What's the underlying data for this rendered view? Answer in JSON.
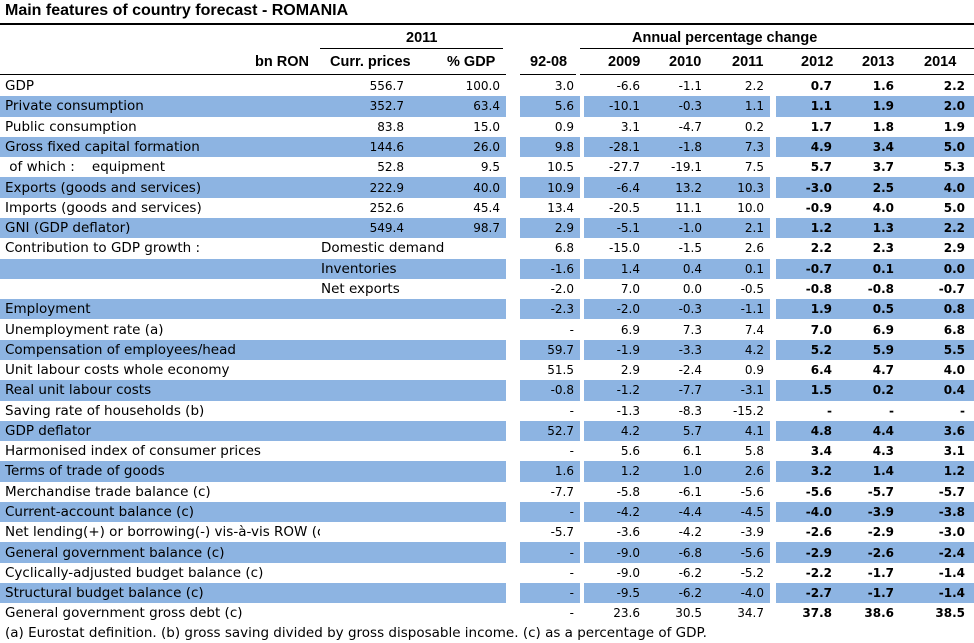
{
  "title": "Main features of country forecast - ROMANIA",
  "header": {
    "year_label": "2011",
    "annual_change_label": "Annual percentage change",
    "col_bn_ron": "bn RON",
    "col_curr_prices": "Curr. prices",
    "col_pct_gdp": "% GDP",
    "col_period": "92-08",
    "col_years": [
      "2009",
      "2010",
      "2011",
      "2012",
      "2013",
      "2014"
    ]
  },
  "rows": [
    {
      "label": "GDP",
      "sub": "",
      "hl": false,
      "curr": "556.7",
      "pct": "100.0",
      "avg": "3.0",
      "vals": [
        "-6.6",
        "-1.1",
        "2.2",
        "0.7",
        "1.6",
        "2.2"
      ]
    },
    {
      "label": "Private consumption",
      "sub": "",
      "hl": true,
      "curr": "352.7",
      "pct": "63.4",
      "avg": "5.6",
      "vals": [
        "-10.1",
        "-0.3",
        "1.1",
        "1.1",
        "1.9",
        "2.0"
      ]
    },
    {
      "label": "Public consumption",
      "sub": "",
      "hl": false,
      "curr": "83.8",
      "pct": "15.0",
      "avg": "0.9",
      "vals": [
        "3.1",
        "-4.7",
        "0.2",
        "1.7",
        "1.8",
        "1.9"
      ]
    },
    {
      "label": "Gross fixed capital formation",
      "sub": "",
      "hl": true,
      "curr": "144.6",
      "pct": "26.0",
      "avg": "9.8",
      "vals": [
        "-28.1",
        "-1.8",
        "7.3",
        "4.9",
        "3.4",
        "5.0"
      ]
    },
    {
      "label": " of which :    equipment",
      "sub": "",
      "hl": false,
      "curr": "52.8",
      "pct": "9.5",
      "avg": "10.5",
      "vals": [
        "-27.7",
        "-19.1",
        "7.5",
        "5.7",
        "3.7",
        "5.3"
      ]
    },
    {
      "label": "Exports (goods and services)",
      "sub": "",
      "hl": true,
      "curr": "222.9",
      "pct": "40.0",
      "avg": "10.9",
      "vals": [
        "-6.4",
        "13.2",
        "10.3",
        "-3.0",
        "2.5",
        "4.0"
      ]
    },
    {
      "label": "Imports (goods and services)",
      "sub": "",
      "hl": false,
      "curr": "252.6",
      "pct": "45.4",
      "avg": "13.4",
      "vals": [
        "-20.5",
        "11.1",
        "10.0",
        "-0.9",
        "4.0",
        "5.0"
      ]
    },
    {
      "label": "GNI (GDP deflator)",
      "sub": "",
      "hl": true,
      "curr": "549.4",
      "pct": "98.7",
      "avg": "2.9",
      "vals": [
        "-5.1",
        "-1.0",
        "2.1",
        "1.2",
        "1.3",
        "2.2"
      ]
    },
    {
      "label": "Contribution to GDP growth :",
      "sub": "Domestic demand",
      "hl": false,
      "curr": "",
      "pct": "",
      "avg": "6.8",
      "vals": [
        "-15.0",
        "-1.5",
        "2.6",
        "2.2",
        "2.3",
        "2.9"
      ]
    },
    {
      "label": "",
      "sub": "Inventories",
      "hl": true,
      "curr": "",
      "pct": "",
      "avg": "-1.6",
      "vals": [
        "1.4",
        "0.4",
        "0.1",
        "-0.7",
        "0.1",
        "0.0"
      ]
    },
    {
      "label": "",
      "sub": "Net exports",
      "hl": false,
      "curr": "",
      "pct": "",
      "avg": "-2.0",
      "vals": [
        "7.0",
        "0.0",
        "-0.5",
        "-0.8",
        "-0.8",
        "-0.7"
      ]
    },
    {
      "label": "Employment",
      "sub": "",
      "hl": true,
      "curr": "",
      "pct": "",
      "avg": "-2.3",
      "vals": [
        "-2.0",
        "-0.3",
        "-1.1",
        "1.9",
        "0.5",
        "0.8"
      ]
    },
    {
      "label": "Unemployment rate (a)",
      "sub": "",
      "hl": false,
      "curr": "",
      "pct": "",
      "avg": "-",
      "vals": [
        "6.9",
        "7.3",
        "7.4",
        "7.0",
        "6.9",
        "6.8"
      ]
    },
    {
      "label": "Compensation of employees/head",
      "sub": "",
      "hl": true,
      "curr": "",
      "pct": "",
      "avg": "59.7",
      "vals": [
        "-1.9",
        "-3.3",
        "4.2",
        "5.2",
        "5.9",
        "5.5"
      ]
    },
    {
      "label": "Unit labour costs whole economy",
      "sub": "",
      "hl": false,
      "curr": "",
      "pct": "",
      "avg": "51.5",
      "vals": [
        "2.9",
        "-2.4",
        "0.9",
        "6.4",
        "4.7",
        "4.0"
      ]
    },
    {
      "label": "Real unit labour costs",
      "sub": "",
      "hl": true,
      "curr": "",
      "pct": "",
      "avg": "-0.8",
      "vals": [
        "-1.2",
        "-7.7",
        "-3.1",
        "1.5",
        "0.2",
        "0.4"
      ]
    },
    {
      "label": "Saving rate of households (b)",
      "sub": "",
      "hl": false,
      "curr": "",
      "pct": "",
      "avg": "-",
      "vals": [
        "-1.3",
        "-8.3",
        "-15.2",
        "-",
        "-",
        "-"
      ]
    },
    {
      "label": "GDP deflator",
      "sub": "",
      "hl": true,
      "curr": "",
      "pct": "",
      "avg": "52.7",
      "vals": [
        "4.2",
        "5.7",
        "4.1",
        "4.8",
        "4.4",
        "3.6"
      ]
    },
    {
      "label": "Harmonised index of consumer prices",
      "sub": "",
      "hl": false,
      "curr": "",
      "pct": "",
      "avg": "-",
      "vals": [
        "5.6",
        "6.1",
        "5.8",
        "3.4",
        "4.3",
        "3.1"
      ]
    },
    {
      "label": "Terms of trade of goods",
      "sub": "",
      "hl": true,
      "curr": "",
      "pct": "",
      "avg": "1.6",
      "vals": [
        "1.2",
        "1.0",
        "2.6",
        "3.2",
        "1.4",
        "1.2"
      ]
    },
    {
      "label": "Merchandise trade balance (c)",
      "sub": "",
      "hl": false,
      "curr": "",
      "pct": "",
      "avg": "-7.7",
      "vals": [
        "-5.8",
        "-6.1",
        "-5.6",
        "-5.6",
        "-5.7",
        "-5.7"
      ]
    },
    {
      "label": "Current-account balance (c)",
      "sub": "",
      "hl": true,
      "curr": "",
      "pct": "",
      "avg": "-",
      "vals": [
        "-4.2",
        "-4.4",
        "-4.5",
        "-4.0",
        "-3.9",
        "-3.8"
      ]
    },
    {
      "label": "Net lending(+) or borrowing(-) vis-à-vis ROW (c)",
      "sub": "",
      "hl": false,
      "curr": "",
      "pct": "",
      "avg": "-5.7",
      "vals": [
        "-3.6",
        "-4.2",
        "-3.9",
        "-2.6",
        "-2.9",
        "-3.0"
      ]
    },
    {
      "label": "General government balance (c)",
      "sub": "",
      "hl": true,
      "curr": "",
      "pct": "",
      "avg": "-",
      "vals": [
        "-9.0",
        "-6.8",
        "-5.6",
        "-2.9",
        "-2.6",
        "-2.4"
      ]
    },
    {
      "label": "Cyclically-adjusted budget balance (c)",
      "sub": "",
      "hl": false,
      "curr": "",
      "pct": "",
      "avg": "-",
      "vals": [
        "-9.0",
        "-6.2",
        "-5.2",
        "-2.2",
        "-1.7",
        "-1.4"
      ]
    },
    {
      "label": "Structural budget balance (c)",
      "sub": "",
      "hl": true,
      "curr": "",
      "pct": "",
      "avg": "-",
      "vals": [
        "-9.5",
        "-6.2",
        "-4.0",
        "-2.7",
        "-1.7",
        "-1.4"
      ]
    },
    {
      "label": "General government gross debt (c)",
      "sub": "",
      "hl": false,
      "curr": "",
      "pct": "",
      "avg": "-",
      "vals": [
        "23.6",
        "30.5",
        "34.7",
        "37.8",
        "38.6",
        "38.5"
      ]
    }
  ],
  "footnote": "(a) Eurostat definition.  (b) gross saving divided by gross disposable income.  (c) as a percentage of GDP."
}
